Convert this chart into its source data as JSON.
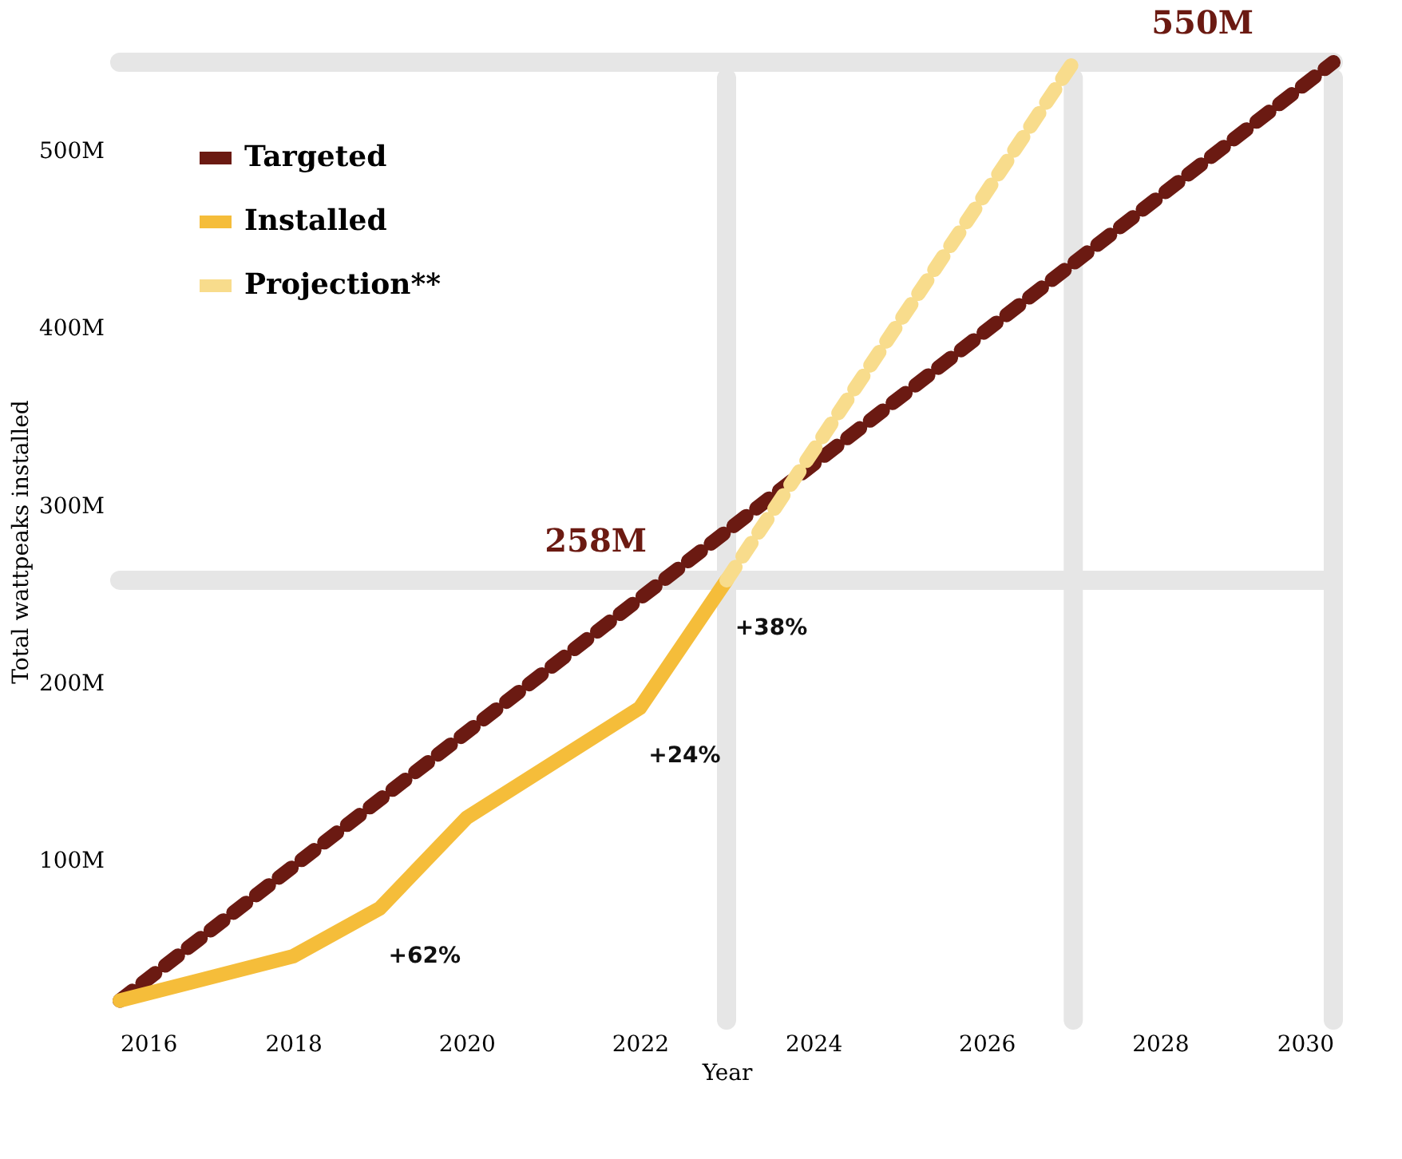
{
  "chart_data": {
    "type": "line",
    "xlabel": "Year",
    "ylabel": "Total wattpeaks installed",
    "xlim": [
      2016,
      2030
    ],
    "xticks": [
      2016,
      2018,
      2020,
      2022,
      2024,
      2026,
      2028,
      2030
    ],
    "ylim": [
      10,
      550
    ],
    "yticks": [
      {
        "value": 100,
        "label": "100M"
      },
      {
        "value": 200,
        "label": "200M"
      },
      {
        "value": 300,
        "label": "300M"
      },
      {
        "value": 400,
        "label": "400M"
      },
      {
        "value": 500,
        "label": "500M"
      }
    ],
    "series": [
      {
        "name": "Targeted",
        "color": "#6b1a12",
        "line_style": "dashed",
        "x": [
          2016,
          2030
        ],
        "values": [
          21,
          550
        ]
      },
      {
        "name": "Installed",
        "color": "#f5bd3a",
        "line_style": "solid",
        "x": [
          2016,
          2018,
          2019,
          2020,
          2022,
          2023
        ],
        "values": [
          21,
          46,
          73,
          124,
          186,
          258
        ]
      },
      {
        "name": "Projection**",
        "color": "#f8dc8c",
        "line_style": "dashed",
        "x": [
          2023,
          2027
        ],
        "values": [
          258,
          550
        ]
      }
    ],
    "ref_lines": [
      {
        "axis": "y",
        "value": 258,
        "label": "258M",
        "color": "#e6e6e6"
      },
      {
        "axis": "y",
        "value": 550,
        "label": "550M",
        "color": "#e6e6e6"
      },
      {
        "axis": "x",
        "value": 2023,
        "color": "#e6e6e6"
      },
      {
        "axis": "x",
        "value": 2027,
        "color": "#e6e6e6"
      },
      {
        "axis": "x",
        "value": 2030,
        "color": "#e6e6e6"
      }
    ],
    "annotations": [
      {
        "text": "+62%",
        "x": 2019,
        "y": 73
      },
      {
        "text": "+24%",
        "x": 2022,
        "y": 186
      },
      {
        "text": "+38%",
        "x": 2023,
        "y": 258
      }
    ],
    "grid": false,
    "legend": "top left"
  }
}
